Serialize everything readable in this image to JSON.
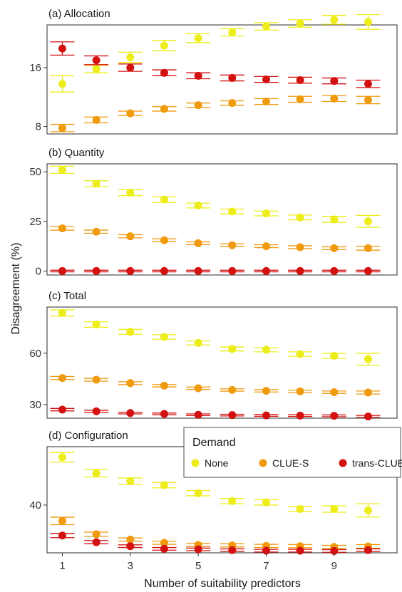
{
  "chart_data": {
    "type": "scatter",
    "xlabel": "Number of suitability predictors",
    "ylabel": "Disagreement (%)",
    "x": [
      1,
      2,
      3,
      4,
      5,
      6,
      7,
      8,
      9,
      10
    ],
    "x_ticks": [
      1,
      3,
      5,
      7,
      9
    ],
    "xlim": [
      0.55,
      10.85
    ],
    "legend": {
      "title": "Demand",
      "entries": [
        "None",
        "CLUE-S",
        "trans-CLUE-S"
      ],
      "placement": "inside panel (d), top-right"
    },
    "colors": {
      "None": "#eded1a",
      "CLUE-S": "#f09a0e",
      "trans-CLUE-S": "#d41111"
    },
    "panels": [
      {
        "title": "(a) Allocation",
        "ylim": [
          7.0,
          21.8
        ],
        "y_ticks": [
          8,
          16
        ],
        "series": [
          {
            "name": "None",
            "values": [
              13.8,
              15.8,
              17.4,
              19.0,
              20.0,
              20.8,
              21.6,
              22.0,
              22.5,
              22.2
            ],
            "err": [
              1.1,
              0.5,
              0.7,
              0.7,
              0.6,
              0.5,
              0.5,
              0.5,
              0.6,
              1.0
            ]
          },
          {
            "name": "CLUE-S",
            "values": [
              7.8,
              8.9,
              9.8,
              10.4,
              10.9,
              11.2,
              11.4,
              11.7,
              11.8,
              11.6
            ],
            "err": [
              0.5,
              0.4,
              0.3,
              0.3,
              0.3,
              0.3,
              0.4,
              0.4,
              0.4,
              0.5
            ]
          },
          {
            "name": "trans-CLUE-S",
            "values": [
              18.6,
              17.0,
              16.0,
              15.3,
              14.9,
              14.6,
              14.4,
              14.3,
              14.2,
              13.8
            ],
            "err": [
              0.9,
              0.6,
              0.5,
              0.4,
              0.4,
              0.4,
              0.4,
              0.4,
              0.4,
              0.5
            ]
          }
        ]
      },
      {
        "title": "(b) Quantity",
        "ylim": [
          -2.0,
          54.0
        ],
        "y_ticks": [
          0,
          25,
          50
        ],
        "series": [
          {
            "name": "None",
            "values": [
              51.0,
              44.0,
              39.5,
              36.0,
              33.0,
              30.0,
              29.0,
              27.0,
              26.0,
              25.0
            ],
            "err": [
              1.8,
              1.5,
              1.5,
              1.4,
              1.2,
              1.2,
              1.2,
              1.2,
              1.5,
              3.0
            ]
          },
          {
            "name": "CLUE-S",
            "values": [
              21.5,
              19.8,
              17.5,
              15.5,
              14.0,
              13.0,
              12.5,
              12.0,
              11.5,
              11.5
            ],
            "err": [
              0.9,
              0.8,
              0.8,
              0.7,
              0.7,
              0.7,
              0.7,
              0.7,
              0.7,
              1.0
            ]
          },
          {
            "name": "trans-CLUE-S",
            "values": [
              0,
              0,
              0,
              0,
              0,
              0,
              0,
              0,
              0,
              0
            ],
            "err": [
              0.4,
              0.4,
              0.4,
              0.4,
              0.4,
              0.4,
              0.4,
              0.4,
              0.4,
              0.4
            ]
          }
        ]
      },
      {
        "title": "(c) Total",
        "ylim": [
          22.0,
          87.0
        ],
        "y_ticks": [
          30,
          60
        ],
        "series": [
          {
            "name": "None",
            "values": [
              83.5,
              76.8,
              72.5,
              69.5,
              66.0,
              62.5,
              62.0,
              59.5,
              58.5,
              56.5
            ],
            "err": [
              1.8,
              1.6,
              1.4,
              1.3,
              1.2,
              1.2,
              1.2,
              1.3,
              1.5,
              3.5
            ]
          },
          {
            "name": "CLUE-S",
            "values": [
              45.5,
              44.5,
              42.5,
              41.0,
              39.5,
              38.5,
              38.0,
              37.7,
              37.2,
              37.0
            ],
            "err": [
              0.9,
              0.8,
              0.8,
              0.7,
              0.7,
              0.7,
              0.7,
              0.7,
              0.7,
              0.9
            ]
          },
          {
            "name": "trans-CLUE-S",
            "values": [
              27.0,
              26.0,
              25.0,
              24.5,
              24.0,
              23.8,
              23.6,
              23.5,
              23.4,
              23.0
            ],
            "err": [
              0.7,
              0.6,
              0.5,
              0.5,
              0.5,
              0.5,
              0.5,
              0.5,
              0.5,
              0.6
            ]
          }
        ]
      },
      {
        "title": "(d) Configuration",
        "ylim": [
          22.0,
          62.0
        ],
        "y_ticks": [
          40
        ],
        "series": [
          {
            "name": "None",
            "values": [
              58.0,
              52.0,
              49.0,
              47.5,
              44.5,
              41.5,
              41.0,
              38.5,
              38.5,
              38.0
            ],
            "err": [
              1.8,
              1.4,
              1.2,
              1.0,
              1.0,
              1.0,
              1.0,
              1.0,
              1.2,
              2.5
            ]
          },
          {
            "name": "CLUE-S",
            "values": [
              34.0,
              29.0,
              27.0,
              25.8,
              25.0,
              24.8,
              24.6,
              24.5,
              24.2,
              24.4
            ],
            "err": [
              1.4,
              0.8,
              0.6,
              0.6,
              0.6,
              0.6,
              0.6,
              0.6,
              0.6,
              0.7
            ]
          },
          {
            "name": "trans-CLUE-S",
            "values": [
              28.5,
              26.0,
              24.5,
              23.5,
              23.3,
              23.0,
              22.8,
              22.8,
              22.7,
              23.0
            ],
            "err": [
              0.8,
              0.6,
              0.5,
              0.5,
              0.5,
              0.5,
              0.5,
              0.5,
              0.5,
              0.5
            ]
          }
        ]
      }
    ]
  }
}
